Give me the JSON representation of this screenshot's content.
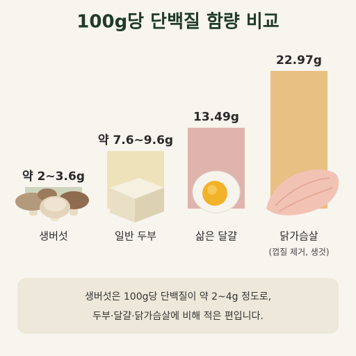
{
  "chart_data": {
    "type": "bar",
    "title": "100g당 단백질 함량 비교",
    "categories": [
      "생버섯",
      "일반 두부",
      "삶은 달걀",
      "닭가슴살"
    ],
    "values": [
      3.6,
      9.6,
      13.49,
      22.97
    ],
    "value_labels": [
      "약 2~3.6g",
      "약 7.6~9.6g",
      "13.49g",
      "22.97g"
    ],
    "colors": [
      "#cdd5bd",
      "#ede2b9",
      "#deb4ad",
      "#e8c083"
    ],
    "category_note": "(껍질 제거, 생것)",
    "footnote": [
      "생버섯은 100g당 단백질이 약 2~4g 정도로,",
      "두부·달걀·닭가슴살에 비해 적은 편입니다."
    ]
  }
}
